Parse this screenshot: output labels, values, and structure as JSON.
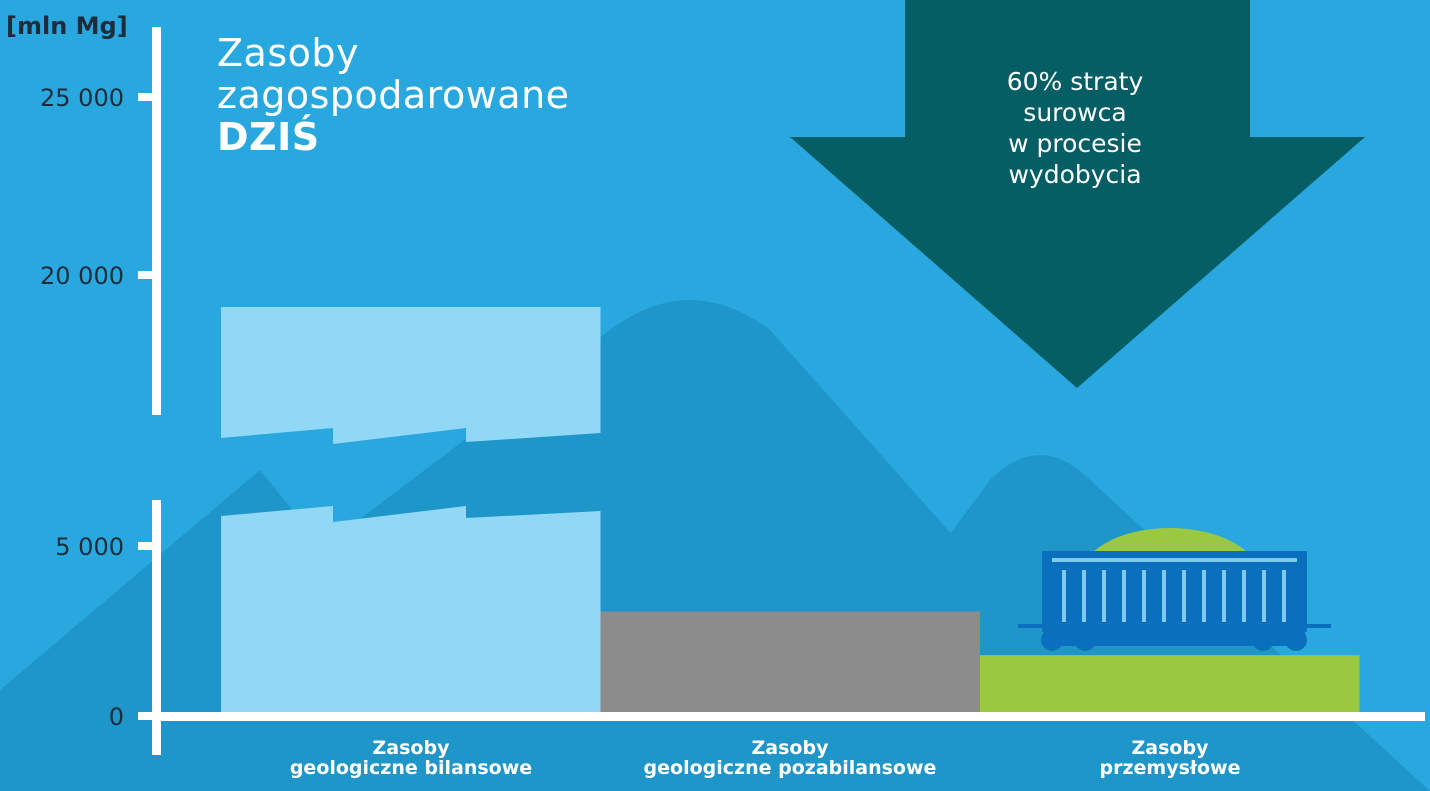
{
  "chart_data": {
    "type": "bar",
    "title_lines": [
      "Zasoby",
      "zagospodarowane"
    ],
    "title_emphasis": "DZIŚ",
    "ylabel": "[mln Mg]",
    "axis_break": true,
    "ylim": [
      0,
      25000
    ],
    "yticks": [
      {
        "value": 0,
        "label": "0"
      },
      {
        "value": 5000,
        "label": "5 000"
      },
      {
        "value": 20000,
        "label": "20 000"
      },
      {
        "value": 25000,
        "label": "25 000"
      }
    ],
    "categories": [
      {
        "lines": [
          "Zasoby",
          "geologiczne bilansowe"
        ]
      },
      {
        "lines": [
          "Zasoby",
          "geologiczne pozabilansowe"
        ]
      },
      {
        "lines": [
          "Zasoby",
          "przemysłowe"
        ]
      }
    ],
    "values": [
      19100,
      3070,
      1790
    ],
    "bar_colors": [
      "#91d7f6",
      "#8c8c8c",
      "#9ac841"
    ],
    "annotation_lines": [
      "60% straty",
      "surowca",
      "w procesie",
      "wydobycia"
    ],
    "grid": false
  },
  "colors": {
    "background": "#29a8e0",
    "mountain": "#1f96c9",
    "arrow": "#045e64",
    "axis": "#ffffff",
    "wagon": "#0a6fbd",
    "wagon_stripe": "#7fc8ef",
    "coal_pile": "#9ac841"
  },
  "icons": {
    "wagon": "railway-freight-wagon-icon"
  }
}
